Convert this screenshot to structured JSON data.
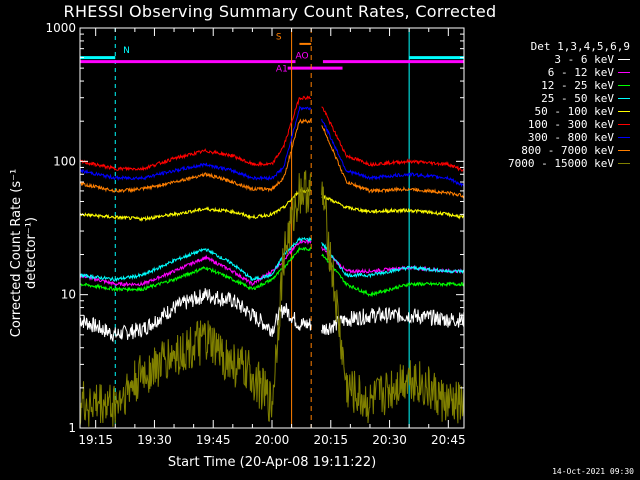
{
  "chart_data": {
    "type": "line",
    "title": "RHESSI Observing Summary Count Rates, Corrected",
    "xlabel": "Start Time (20-Apr-08 19:11:22)",
    "ylabel": "Corrected Count Rate (s⁻¹ detector⁻¹)",
    "yscale": "log",
    "ylim": [
      1,
      1000
    ],
    "xlim_minutes": [
      0,
      41
    ],
    "y_ticks": [
      {
        "value": 1,
        "label": "1"
      },
      {
        "value": 10,
        "label": "10"
      },
      {
        "value": 100,
        "label": "100"
      },
      {
        "value": 1000,
        "label": "1000"
      }
    ],
    "x_ticks": [
      {
        "minutes": 0,
        "label": "19:15"
      },
      {
        "minutes": 15,
        "label": "19:30"
      },
      {
        "minutes": 30,
        "label": "19:45"
      },
      {
        "minutes": 45,
        "label": "20:00"
      },
      {
        "minutes": 60,
        "label": "20:15"
      },
      {
        "minutes": 75,
        "label": "20:30"
      },
      {
        "minutes": 90,
        "label": "20:45"
      }
    ],
    "detectors": "Det 1,3,4,5,6,9",
    "series": [
      {
        "name": "3 - 6 keV",
        "color": "#ffffff",
        "x": [
          -4,
          5,
          12,
          20,
          28,
          35,
          40,
          45,
          48,
          52,
          55,
          58,
          64,
          70,
          80,
          90,
          94
        ],
        "y": [
          6.5,
          5,
          5.5,
          8,
          10,
          9,
          7,
          5.5,
          8,
          6,
          6,
          5.5,
          6.5,
          7,
          7,
          6.5,
          6.5
        ]
      },
      {
        "name": "6 - 12 keV",
        "color": "#ff00ff",
        "x": [
          -4,
          5,
          12,
          20,
          28,
          35,
          40,
          45,
          48,
          52,
          55,
          58,
          64,
          70,
          80,
          90,
          94
        ],
        "y": [
          14,
          12,
          12,
          15,
          19,
          15,
          12,
          15,
          18,
          25,
          25,
          22,
          15,
          15,
          16,
          15,
          15
        ]
      },
      {
        "name": "12 - 25 keV",
        "color": "#00ff00",
        "x": [
          -4,
          5,
          12,
          20,
          28,
          35,
          40,
          45,
          48,
          52,
          55,
          58,
          64,
          70,
          80,
          90,
          94
        ],
        "y": [
          12,
          11,
          11,
          13,
          16,
          13,
          11,
          13,
          16,
          22,
          22,
          20,
          12,
          10,
          12,
          12,
          12
        ]
      },
      {
        "name": "25 - 50 keV",
        "color": "#00ffff",
        "x": [
          -4,
          5,
          12,
          20,
          28,
          35,
          40,
          45,
          48,
          52,
          55,
          58,
          64,
          70,
          80,
          90,
          94
        ],
        "y": [
          14,
          13,
          14,
          18,
          22,
          17,
          13,
          14,
          20,
          26,
          26,
          24,
          14,
          14,
          16,
          15,
          15
        ]
      },
      {
        "name": "50 - 100 keV",
        "color": "#ffff00",
        "x": [
          -4,
          5,
          12,
          20,
          28,
          35,
          40,
          45,
          48,
          52,
          55,
          58,
          64,
          70,
          80,
          90,
          94
        ],
        "y": [
          40,
          38,
          37,
          40,
          44,
          42,
          38,
          40,
          45,
          60,
          60,
          55,
          45,
          42,
          43,
          40,
          38
        ]
      },
      {
        "name": "100 - 300 keV",
        "color": "#ff0000",
        "x": [
          -4,
          5,
          12,
          20,
          28,
          35,
          40,
          45,
          48,
          52,
          55,
          58,
          64,
          70,
          80,
          90,
          94
        ],
        "y": [
          100,
          88,
          88,
          105,
          120,
          110,
          95,
          95,
          130,
          300,
          300,
          250,
          110,
          95,
          100,
          95,
          85
        ]
      },
      {
        "name": "300 - 800 keV",
        "color": "#0000ff",
        "x": [
          -4,
          5,
          12,
          20,
          28,
          35,
          40,
          45,
          48,
          52,
          55,
          58,
          64,
          70,
          80,
          90,
          94
        ],
        "y": [
          85,
          75,
          75,
          85,
          95,
          85,
          75,
          75,
          90,
          250,
          250,
          200,
          85,
          75,
          80,
          75,
          65
        ]
      },
      {
        "name": "800 - 7000 keV",
        "color": "#ff7f00",
        "x": [
          -4,
          5,
          12,
          20,
          28,
          35,
          40,
          45,
          48,
          52,
          55,
          58,
          64,
          70,
          80,
          90,
          94
        ],
        "y": [
          68,
          60,
          62,
          70,
          80,
          70,
          62,
          62,
          75,
          200,
          200,
          180,
          70,
          60,
          62,
          58,
          55
        ]
      },
      {
        "name": "7000 - 15000 keV",
        "color": "#808000",
        "x": [
          -4,
          5,
          12,
          20,
          28,
          35,
          40,
          45,
          48,
          52,
          55,
          58,
          64,
          70,
          80,
          90,
          94
        ],
        "y": [
          1.5,
          1.5,
          2.5,
          3.5,
          4.5,
          3,
          2.5,
          1.5,
          20,
          60,
          60,
          55,
          2,
          1.5,
          2.5,
          1.5,
          1.5
        ]
      }
    ],
    "annotations": [
      {
        "label": "N"
      },
      {
        "label": "S"
      },
      {
        "label": "AO"
      },
      {
        "label": "A1"
      }
    ]
  },
  "timestamp": "14-Oct-2021 09:30"
}
